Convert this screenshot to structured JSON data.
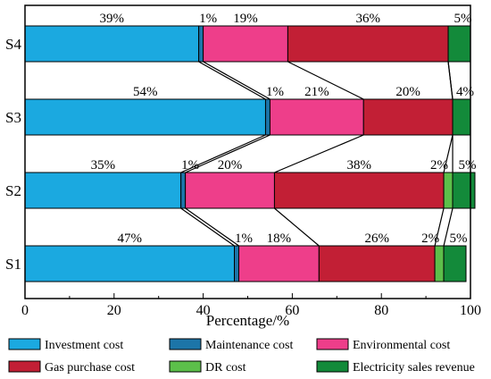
{
  "chart_data": {
    "type": "bar",
    "orientation": "horizontal",
    "stacked": true,
    "categories": [
      "S4",
      "S3",
      "S2",
      "S1"
    ],
    "series": [
      {
        "name": "Investment cost",
        "color": "#1ba9e0",
        "values": [
          39,
          54,
          35,
          47
        ],
        "labels": [
          "39%",
          "54%",
          "35%",
          "47%"
        ]
      },
      {
        "name": "Maintenance cost",
        "color": "#1c75a8",
        "values": [
          1,
          1,
          1,
          1
        ],
        "labels": [
          "1%",
          "1%",
          "1%",
          "1%"
        ]
      },
      {
        "name": "Environmental cost",
        "color": "#ee3e8a",
        "values": [
          19,
          21,
          20,
          18
        ],
        "labels": [
          "19%",
          "21%",
          "20%",
          "18%"
        ]
      },
      {
        "name": "Gas purchase cost",
        "color": "#c21f35",
        "values": [
          36,
          20,
          38,
          26
        ],
        "labels": [
          "36%",
          "20%",
          "38%",
          "26%"
        ]
      },
      {
        "name": "DR cost",
        "color": "#5cbf4a",
        "values": [
          0,
          0,
          2,
          2
        ],
        "labels": [
          "",
          "",
          "2%",
          "2%"
        ]
      },
      {
        "name": "Electricity sales revenue",
        "color": "#138a3a",
        "values": [
          5,
          4,
          5,
          5
        ],
        "labels": [
          "5%",
          "4%",
          "5%",
          "5%"
        ]
      }
    ],
    "xlabel": "Percentage/%",
    "xlim": [
      0,
      100
    ],
    "xticks": [
      "0",
      "20",
      "40",
      "60",
      "80",
      "100"
    ],
    "grid": false,
    "connector_lines": true,
    "legend_position": "bottom"
  }
}
